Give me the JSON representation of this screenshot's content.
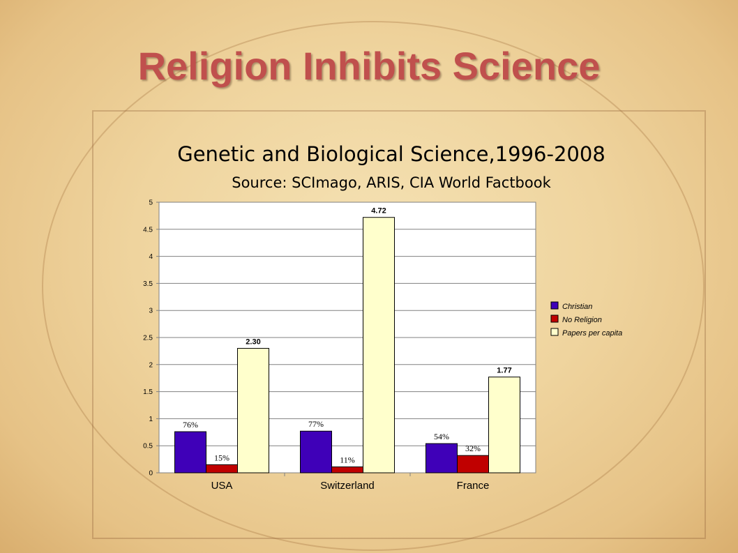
{
  "slide": {
    "title": "Religion Inhibits Science"
  },
  "chart_data": {
    "type": "bar",
    "title": "Genetic and Biological Science,1996-2008",
    "subtitle": "Source: SCImago, ARIS, CIA World Factbook",
    "categories": [
      "USA",
      "Switzerland",
      "France"
    ],
    "series": [
      {
        "name": "Christian",
        "color": "#3f00b8",
        "values": [
          0.76,
          0.77,
          0.54
        ],
        "labels": [
          "76%",
          "77%",
          "54%"
        ]
      },
      {
        "name": "No Religion",
        "color": "#c00000",
        "values": [
          0.15,
          0.11,
          0.32
        ],
        "labels": [
          "15%",
          "11%",
          "32%"
        ]
      },
      {
        "name": "Papers per capita",
        "color": "#ffffcc",
        "values": [
          2.3,
          4.72,
          1.77
        ],
        "labels": [
          "2.30",
          "4.72",
          "1.77"
        ]
      }
    ],
    "ylim": [
      0,
      5
    ],
    "yticks": [
      "0",
      "0.5",
      "1",
      "1.5",
      "2",
      "2.5",
      "3",
      "3.5",
      "4",
      "4.5",
      "5"
    ],
    "grid": true,
    "legend": "right"
  }
}
